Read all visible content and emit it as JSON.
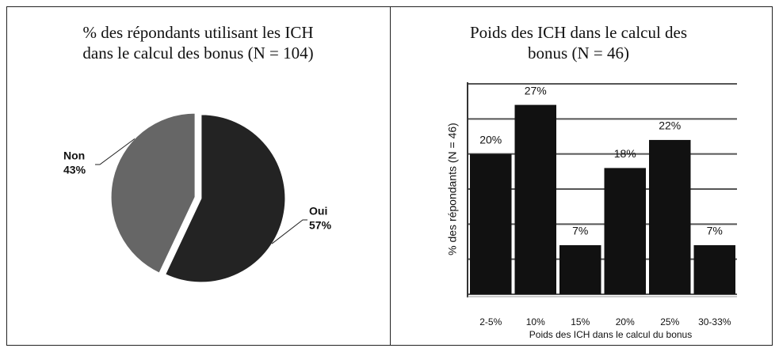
{
  "chart_data": [
    {
      "type": "pie",
      "title": "% des répondants utilisant les ICH dans le calcul des bonus (N = 104)",
      "categories": [
        "Non",
        "Oui"
      ],
      "values": [
        43,
        57
      ],
      "value_labels": [
        "43%",
        "57%"
      ],
      "colors": [
        "#666666",
        "#232323"
      ]
    },
    {
      "type": "bar",
      "title": "Poids des ICH dans le calcul des bonus (N = 46)",
      "categories": [
        "2-5%",
        "10%",
        "15%",
        "20%",
        "25%",
        "30-33%"
      ],
      "values": [
        20,
        27,
        7,
        18,
        22,
        7
      ],
      "value_labels": [
        "20%",
        "27%",
        "7%",
        "18%",
        "22%",
        "7%"
      ],
      "color": "#111111",
      "y_label": "% des répondants (N = 46)",
      "x_label": "Poids des ICH dans le calcul du bonus",
      "ylim": [
        0,
        30
      ],
      "yticks": [
        0,
        5,
        10,
        15,
        20,
        25,
        30
      ],
      "grid": true
    }
  ]
}
